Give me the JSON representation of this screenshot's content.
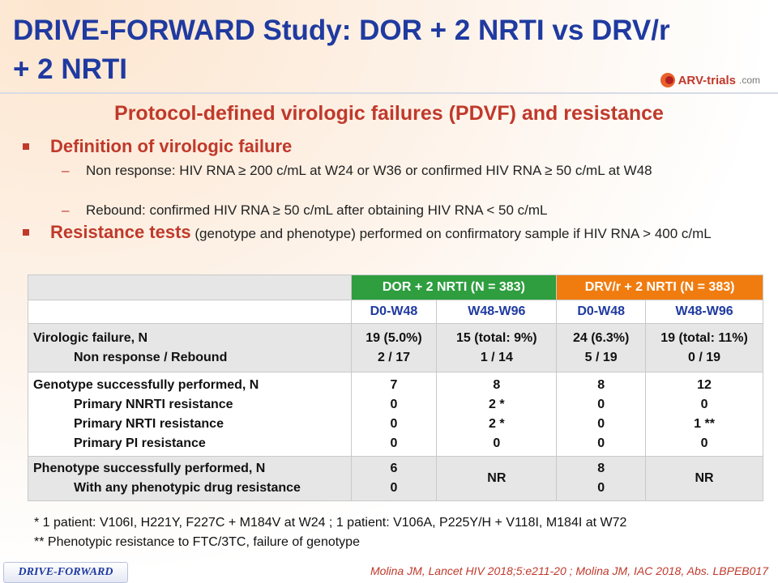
{
  "slide": {
    "title": "DRIVE-FORWARD Study: DOR + 2 NRTI vs DRV/r + 2 NRTI",
    "logo": {
      "name": "ARV-trials",
      "suffix": ".com"
    },
    "subtitle": "Protocol-defined virologic failures (PDVF) and resistance"
  },
  "bullets": {
    "definition": {
      "heading": "Definition of virologic failure",
      "items": [
        {
          "dash": "–",
          "text": "Non response: HIV RNA ≥ 200 c/mL at W24 or W36 or confirmed HIV RNA ≥ 50 c/mL at W48"
        },
        {
          "dash": "–",
          "text": "Rebound: confirmed HIV RNA ≥ 50 c/mL after obtaining HIV RNA < 50 c/mL"
        }
      ]
    },
    "resistance": {
      "heading": "Resistance tests",
      "text": " (genotype and phenotype) performed on confirmatory sample if HIV RNA > 400 c/mL"
    }
  },
  "table": {
    "groups": [
      "DOR + 2 NRTI  (N = 383)",
      "DRV/r + 2 NRTI (N = 383)"
    ],
    "columns": [
      "D0-W48",
      "W48-W96",
      "D0-W48",
      "W48-W96"
    ],
    "rows": [
      {
        "labels": [
          "Virologic failure, N",
          "Non response / Rebound"
        ],
        "cells": [
          [
            "19 (5.0%)",
            "2 / 17"
          ],
          [
            "15 (total: 9%)",
            "1 / 14"
          ],
          [
            "24 (6.3%)",
            "5 / 19"
          ],
          [
            "19 (total: 11%)",
            "0 / 19"
          ]
        ]
      },
      {
        "labels": [
          "Genotype successfully performed, N",
          "Primary NNRTI resistance",
          "Primary NRTI resistance",
          "Primary PI resistance"
        ],
        "cells": [
          [
            "7",
            "0",
            "0",
            "0"
          ],
          [
            "8",
            "2 *",
            "2 *",
            "0"
          ],
          [
            "8",
            "0",
            "0",
            "0"
          ],
          [
            "12",
            "0",
            "1 **",
            "0"
          ]
        ]
      },
      {
        "labels": [
          "Phenotype successfully performed, N",
          "With any phenotypic drug resistance"
        ],
        "cells": [
          [
            "6",
            "0"
          ],
          [
            "NR"
          ],
          [
            "8",
            "0"
          ],
          [
            "NR"
          ]
        ]
      }
    ]
  },
  "footnotes": [
    "* 1 patient: V106I, H221Y, F227C + M184V at W24 ; 1 patient: V106A, P225Y/H + V118I, M184I at W72",
    "** Phenotypic resistance to FTC/3TC, failure of genotype"
  ],
  "footer": {
    "tag": "DRIVE-FORWARD",
    "citation": "Molina JM, Lancet HIV 2018;5:e211-20 ; Molina JM, IAC 2018, Abs. LBPEB017"
  },
  "colors": {
    "title": "#1f3aa0",
    "accent": "#c0392b",
    "dor_header": "#2e9e3f",
    "drv_header": "#f07c10",
    "cell_grey": "#e6e6e6"
  }
}
